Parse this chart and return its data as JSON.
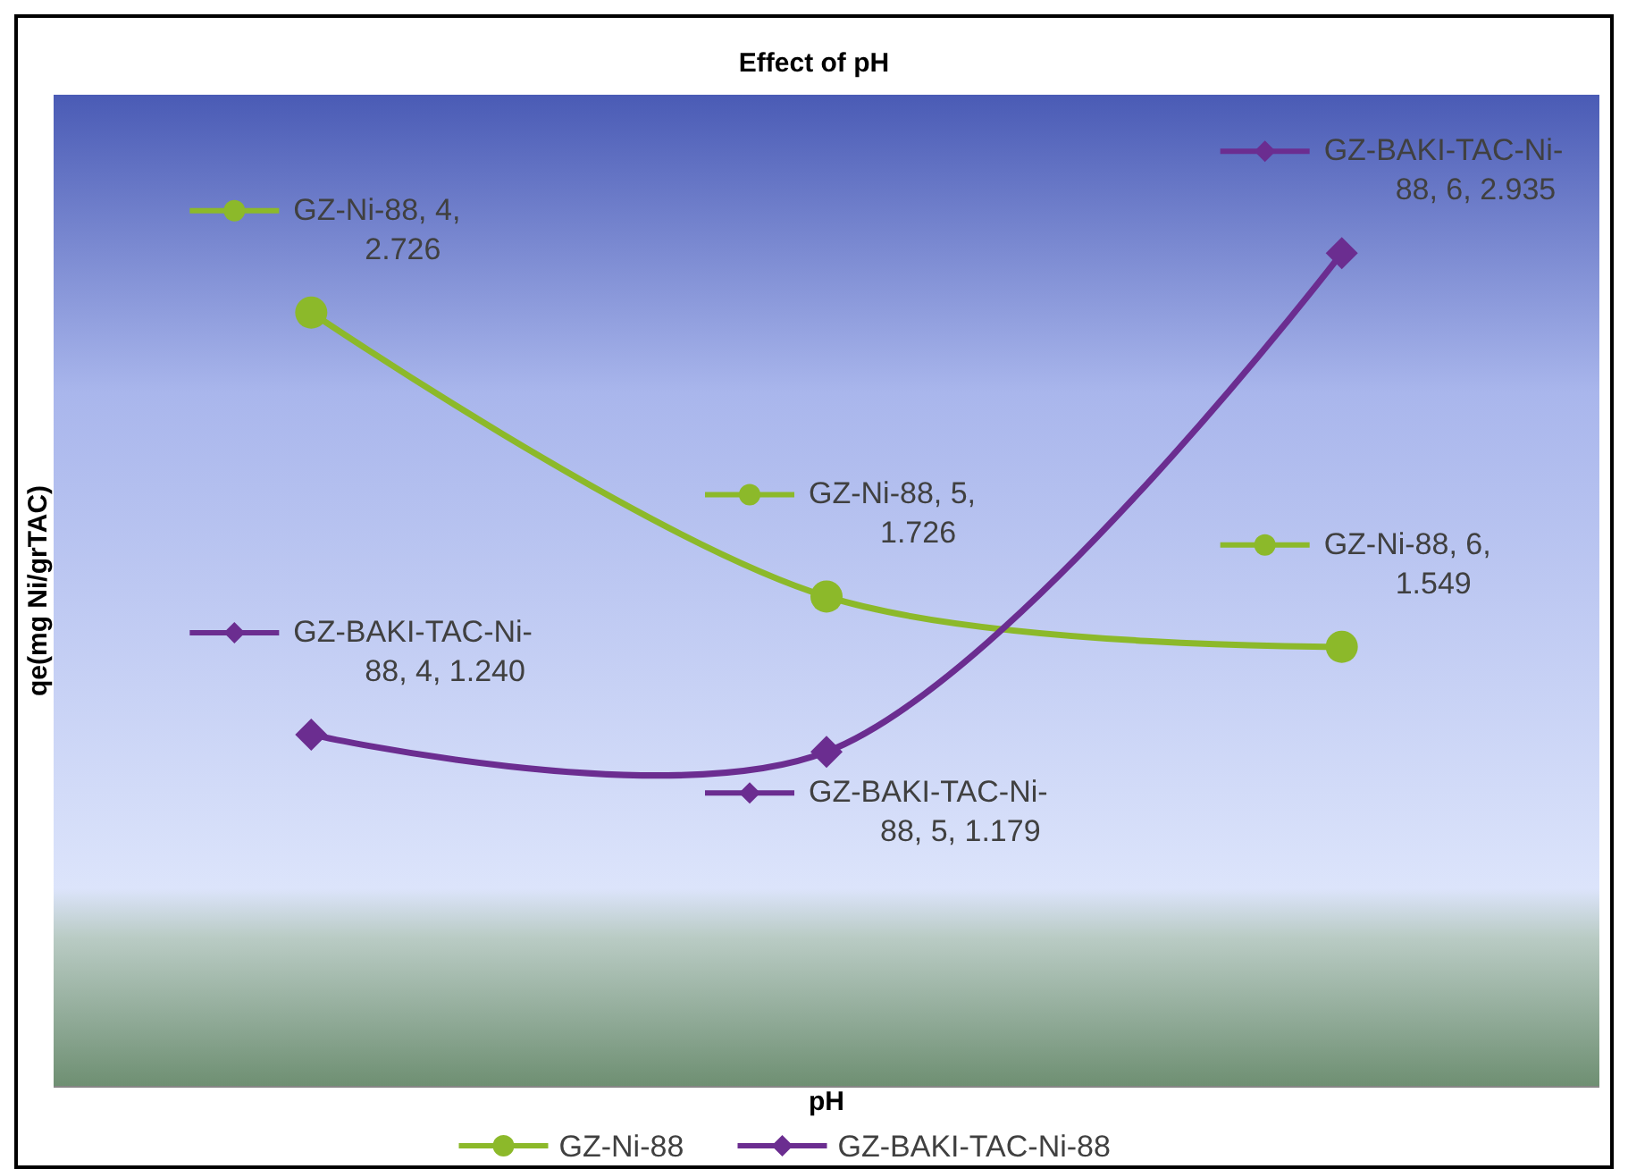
{
  "chart_data": {
    "type": "line",
    "title": "Effect of pH",
    "annotations": [
      "pH"
    ],
    "ylabel": "qe(mg Ni/grTAC)",
    "categories": [
      null,
      null,
      null
    ],
    "legend": "bottom",
    "line_style": "solid",
    "series": [
      {
        "name": "GZ-Ni-88",
        "color": "#8cb92a",
        "marker": "circle",
        "values": [
          2.726,
          1.726,
          1.549
        ],
        "value_labels": [
          "GZ-Ni-88, 4, 2.726",
          "GZ-Ni-88, 5, 1.726",
          "GZ-Ni-88, 6, 1.549"
        ]
      },
      {
        "name": "GZ-BAKI-TAC-Ni-88",
        "color": "#6b2d90",
        "marker": "diamond",
        "values": [
          1.24,
          1.179,
          2.935
        ],
        "value_labels": [
          "GZ-BAKI-TAC-Ni-88, 4, 1.240",
          "GZ-BAKI-TAC-Ni-88, 5, 1.179",
          "GZ-BAKI-TAC-Ni-88, 6, 2.935"
        ]
      }
    ]
  }
}
